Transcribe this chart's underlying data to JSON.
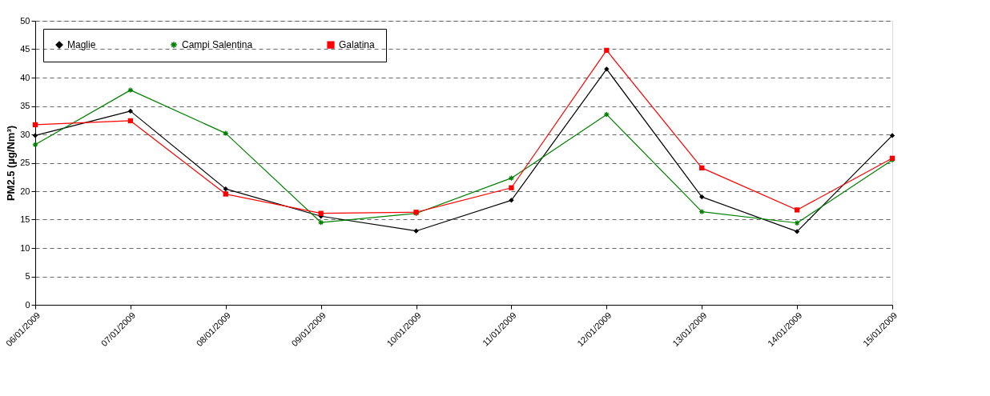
{
  "chart_data": {
    "type": "line",
    "ylabel": "PM2.5 (µg/Nm³)",
    "categories": [
      "06/01/2009",
      "07/01/2009",
      "08/01/2009",
      "09/01/2009",
      "10/01/2009",
      "11/01/2009",
      "12/01/2009",
      "13/01/2009",
      "14/01/2009",
      "15/01/2009"
    ],
    "series": [
      {
        "name": "Maglie",
        "color": "#000000",
        "marker": "diamond",
        "values": [
          29.8,
          34.1,
          20.4,
          15.6,
          13.0,
          18.4,
          41.5,
          19.0,
          12.9,
          29.8
        ]
      },
      {
        "name": "Campi Salentina",
        "color": "#008000",
        "marker": "cross",
        "values": [
          28.2,
          37.8,
          30.2,
          14.5,
          16.1,
          22.3,
          33.5,
          16.4,
          14.4,
          25.5
        ]
      },
      {
        "name": "Galatina",
        "color": "#ff0000",
        "marker": "square",
        "values": [
          31.7,
          32.4,
          19.5,
          16.1,
          16.3,
          20.6,
          44.8,
          24.1,
          16.7,
          25.8
        ]
      }
    ],
    "ylim": [
      0,
      50
    ],
    "yticks": [
      0,
      5,
      10,
      15,
      20,
      25,
      30,
      35,
      40,
      45,
      50
    ],
    "grid": "y",
    "legend": "top left",
    "line_style": "solid"
  }
}
